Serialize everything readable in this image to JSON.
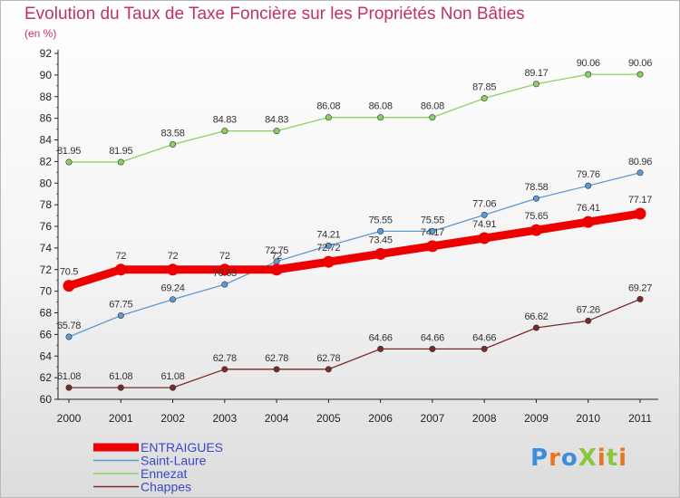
{
  "chart_data": {
    "type": "line",
    "title": "Evolution du Taux de Taxe Foncière sur les Propriétés Non Bâties",
    "subtitle": "(en %)",
    "x": [
      "2000",
      "2001",
      "2002",
      "2003",
      "2004",
      "2005",
      "2006",
      "2007",
      "2008",
      "2009",
      "2010",
      "2011"
    ],
    "ylim": [
      60,
      92
    ],
    "yticks": [
      60,
      62,
      64,
      66,
      68,
      70,
      72,
      74,
      76,
      78,
      80,
      82,
      84,
      86,
      88,
      90,
      92
    ],
    "grid": false,
    "legend_position": "bottom-left",
    "series": [
      {
        "name": "ENTRAIGUES",
        "color": "#ee0000",
        "emphasized": true,
        "values": [
          70.5,
          72,
          72,
          72,
          72,
          72.72,
          73.45,
          74.17,
          74.91,
          75.65,
          76.41,
          77.17
        ],
        "labels": [
          "70.5",
          "72",
          "72",
          "72",
          "72",
          "72.72",
          "73.45",
          "74.17",
          "74.91",
          "75.65",
          "76.41",
          "77.17"
        ]
      },
      {
        "name": "Saint-Laure",
        "color": "#5b9bd5",
        "emphasized": false,
        "values": [
          65.78,
          67.75,
          69.24,
          70.63,
          72.75,
          74.21,
          75.55,
          75.55,
          77.06,
          78.58,
          79.76,
          80.96
        ],
        "labels": [
          "65.78",
          "67.75",
          "69.24",
          "70.63",
          "72.75",
          "74.21",
          "75.55",
          "75.55",
          "77.06",
          "78.58",
          "79.76",
          "80.96"
        ]
      },
      {
        "name": "Ennezat",
        "color": "#8cd063",
        "emphasized": false,
        "values": [
          81.95,
          81.95,
          83.58,
          84.83,
          84.83,
          86.08,
          86.08,
          86.08,
          87.85,
          89.17,
          90.06,
          90.06
        ],
        "labels": [
          "81.95",
          "81.95",
          "83.58",
          "84.83",
          "84.83",
          "86.08",
          "86.08",
          "86.08",
          "87.85",
          "89.17",
          "90.06",
          "90.06"
        ]
      },
      {
        "name": "Chappes",
        "color": "#7a2a2a",
        "emphasized": false,
        "values": [
          61.08,
          61.08,
          61.08,
          62.78,
          62.78,
          62.78,
          64.66,
          64.66,
          64.66,
          66.62,
          67.26,
          69.27
        ],
        "labels": [
          "61.08",
          "61.08",
          "61.08",
          "62.78",
          "62.78",
          "62.78",
          "64.66",
          "64.66",
          "64.66",
          "66.62",
          "67.26",
          "69.27"
        ]
      }
    ]
  },
  "logo": {
    "text": "ProXiti",
    "letter_colors": [
      "#3b8ed8",
      "#e8761e",
      "#3b8ed8",
      "#8cc63f",
      "#e8761e",
      "#8cc63f",
      "#e8761e"
    ]
  }
}
